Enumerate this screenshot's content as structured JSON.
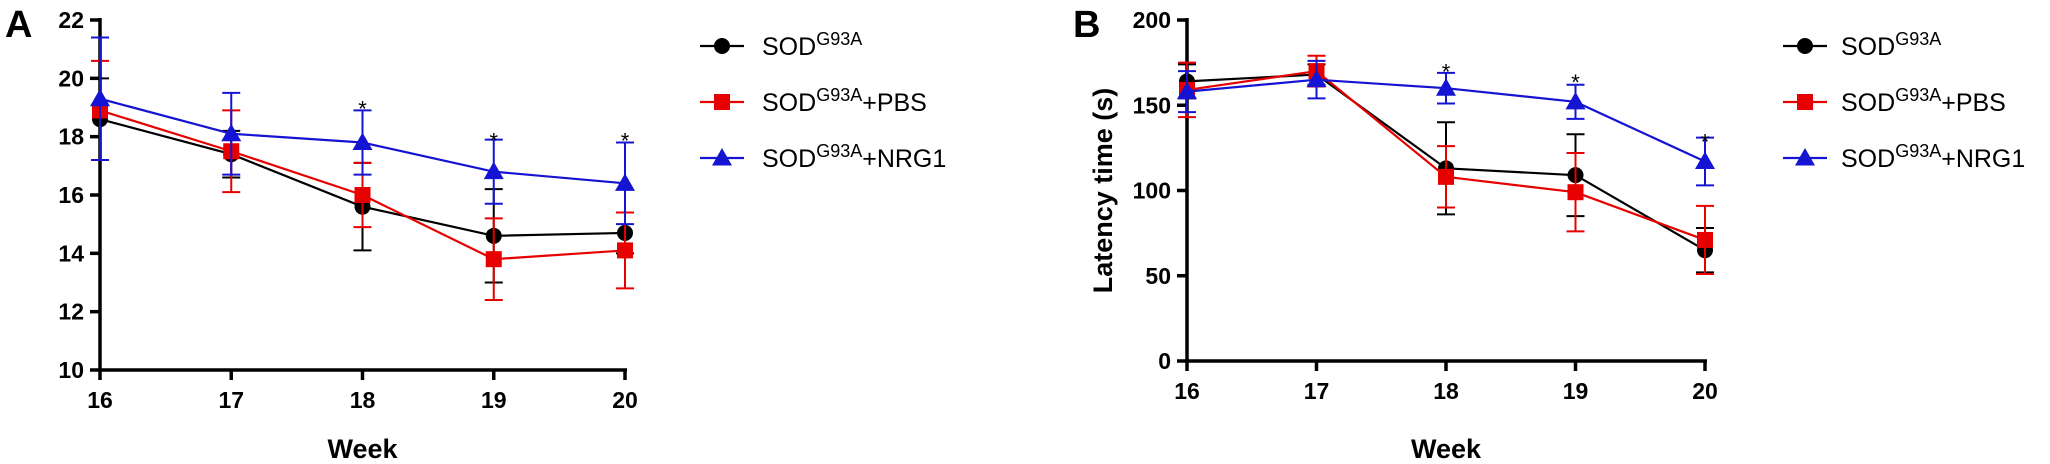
{
  "colors": {
    "sod": "#000000",
    "pbs": "#e60000",
    "nrg1": "#1414d2"
  },
  "legend_labels": [
    {
      "base": "SOD",
      "sup": "G93A",
      "suffix": ""
    },
    {
      "base": "SOD",
      "sup": "G93A",
      "suffix": "+PBS"
    },
    {
      "base": "SOD",
      "sup": "G93A",
      "suffix": "+NRG1"
    }
  ],
  "chart_data": [
    {
      "panel": "A",
      "type": "line",
      "xlabel": "Week",
      "ylabel": "",
      "x": [
        16,
        17,
        18,
        19,
        20
      ],
      "xlim": [
        16,
        20
      ],
      "ylim": [
        10,
        22
      ],
      "yticks": [
        10,
        12,
        14,
        16,
        18,
        20,
        22
      ],
      "legend_position": "right",
      "series": [
        {
          "name": "SOD G93A",
          "marker": "circle",
          "color": "#000000",
          "values": [
            18.6,
            17.4,
            15.6,
            14.6,
            14.7
          ],
          "errors": [
            1.4,
            0.8,
            1.5,
            1.6,
            0.7
          ]
        },
        {
          "name": "SOD G93A +PBS",
          "marker": "square",
          "color": "#e60000",
          "values": [
            18.9,
            17.5,
            16.0,
            13.8,
            14.1
          ],
          "errors": [
            1.7,
            1.4,
            1.1,
            1.4,
            1.3
          ]
        },
        {
          "name": "SOD G93A +NRG1",
          "marker": "triangle",
          "color": "#1414d2",
          "values": [
            19.3,
            18.1,
            17.8,
            16.8,
            16.4
          ],
          "errors": [
            2.1,
            1.4,
            1.1,
            1.1,
            1.4
          ]
        }
      ],
      "significance": [
        {
          "x": 18,
          "y": 19.1,
          "label": "*"
        },
        {
          "x": 19,
          "y": 18.0,
          "label": "*"
        },
        {
          "x": 20,
          "y": 18.0,
          "label": "*"
        }
      ]
    },
    {
      "panel": "B",
      "type": "line",
      "xlabel": "Week",
      "ylabel": "Latency time (s)",
      "x": [
        16,
        17,
        18,
        19,
        20
      ],
      "xlim": [
        16,
        20
      ],
      "ylim": [
        0,
        200
      ],
      "yticks": [
        0,
        50,
        100,
        150,
        200
      ],
      "legend_position": "right",
      "series": [
        {
          "name": "SOD G93A",
          "marker": "circle",
          "color": "#000000",
          "values": [
            164,
            168,
            113,
            109,
            65
          ],
          "errors": [
            10,
            6,
            27,
            24,
            13
          ]
        },
        {
          "name": "SOD G93A +PBS",
          "marker": "square",
          "color": "#e60000",
          "values": [
            159,
            170,
            108,
            99,
            71
          ],
          "errors": [
            16,
            9,
            18,
            23,
            20
          ]
        },
        {
          "name": "SOD G93A +NRG1",
          "marker": "triangle",
          "color": "#1414d2",
          "values": [
            158,
            165,
            160,
            152,
            117
          ],
          "errors": [
            12,
            11,
            9,
            10,
            14
          ]
        }
      ],
      "significance": [
        {
          "x": 18,
          "y": 172,
          "label": "*"
        },
        {
          "x": 19,
          "y": 166,
          "label": "*"
        },
        {
          "x": 20,
          "y": 131,
          "label": "*"
        }
      ]
    }
  ]
}
